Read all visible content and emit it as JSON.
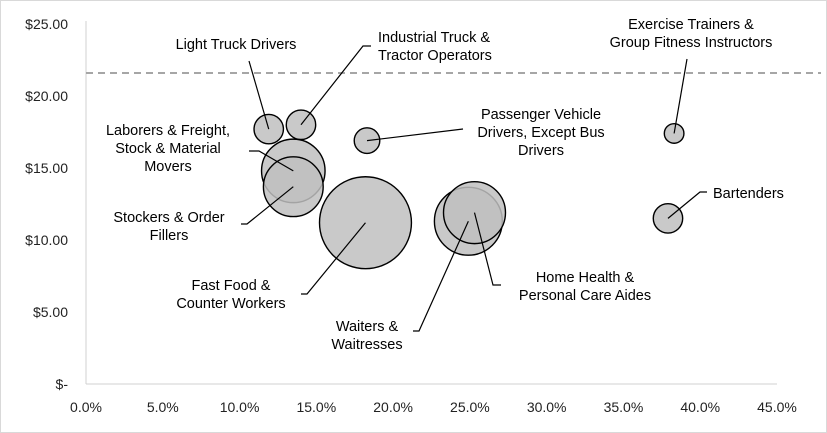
{
  "chart_data": {
    "type": "scatter",
    "subtype": "bubble",
    "title": "",
    "xlabel": "",
    "ylabel": "",
    "xlim": [
      0,
      45
    ],
    "ylim": [
      0,
      25
    ],
    "x_ticks": [
      "0.0%",
      "5.0%",
      "10.0%",
      "15.0%",
      "20.0%",
      "25.0%",
      "30.0%",
      "35.0%",
      "40.0%",
      "45.0%"
    ],
    "y_ticks": [
      "$-",
      "$5.00",
      "$10.00",
      "$15.00",
      "$20.00",
      "$25.00"
    ],
    "grid": false,
    "reference_line": {
      "y": 21.6,
      "style": "dashed",
      "color": "#a6a6a6"
    },
    "bubble_color": "#bfbfbf",
    "outline_color": "#000000",
    "points": [
      {
        "label": [
          "Light Truck Drivers"
        ],
        "x": 11.9,
        "y": 17.7,
        "size": 225
      },
      {
        "label": [
          "Industrial Truck &",
          "Tractor Operators"
        ],
        "x": 14.0,
        "y": 18.0,
        "size": 225
      },
      {
        "label": [
          "Laborers & Freight,",
          "Stock & Material",
          "Movers"
        ],
        "x": 13.5,
        "y": 14.8,
        "size": 1050
      },
      {
        "label": [
          "Stockers & Order",
          "Fillers"
        ],
        "x": 13.5,
        "y": 13.7,
        "size": 930
      },
      {
        "label": [
          "Fast Food &",
          "Counter Workers"
        ],
        "x": 18.2,
        "y": 11.2,
        "size": 2200
      },
      {
        "label": [
          "Passenger Vehicle",
          "Drivers, Except Bus",
          "Drivers"
        ],
        "x": 18.3,
        "y": 16.9,
        "size": 170
      },
      {
        "label": [
          "Waiters &",
          "Waitresses"
        ],
        "x": 24.9,
        "y": 11.3,
        "size": 1200
      },
      {
        "label": [
          "Home Health &",
          "Personal Care Aides"
        ],
        "x": 25.3,
        "y": 11.9,
        "size": 1000
      },
      {
        "label": [
          "Exercise Trainers &",
          "Group Fitness Instructors"
        ],
        "x": 38.3,
        "y": 17.4,
        "size": 100
      },
      {
        "label": [
          "Bartenders"
        ],
        "x": 37.9,
        "y": 11.5,
        "size": 225
      }
    ]
  }
}
